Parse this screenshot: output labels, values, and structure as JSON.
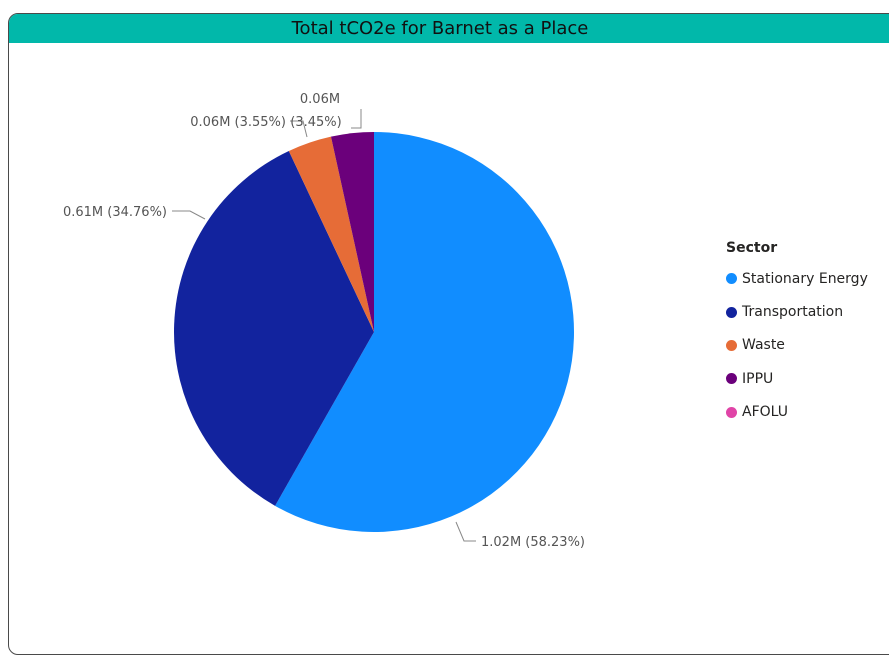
{
  "chart_data": {
    "type": "pie",
    "title": "Total tCO2e for Barnet as a Place",
    "legend_title": "Sector",
    "legend_placement": "right",
    "series": [
      {
        "name": "Stationary Energy",
        "value": 1.02,
        "percent": 58.23,
        "label": "1.02M (58.23%)",
        "color": "#118dff"
      },
      {
        "name": "Transportation",
        "value": 0.61,
        "percent": 34.76,
        "label": "0.61M (34.76%)",
        "color": "#12239e"
      },
      {
        "name": "Waste",
        "value": 0.06,
        "percent": 3.55,
        "label": "0.06M (3.55%)",
        "color": "#e66c37"
      },
      {
        "name": "IPPU",
        "value": 0.06,
        "percent": 3.45,
        "label_line1": "0.06M",
        "label_line2": "(3.45%)",
        "color": "#6b007b"
      },
      {
        "name": "AFOLU",
        "value": 0,
        "percent": 0,
        "label": "",
        "color": "#e044a7"
      }
    ]
  }
}
